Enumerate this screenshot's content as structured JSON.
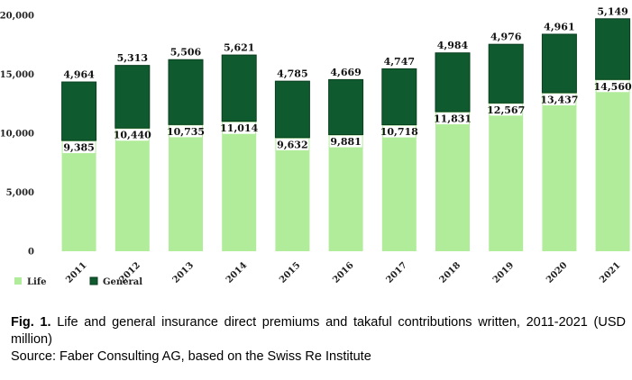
{
  "chart_data": {
    "type": "bar",
    "stacked": true,
    "categories": [
      "2011",
      "2012",
      "2013",
      "2014",
      "2015",
      "2016",
      "2017",
      "2018",
      "2019",
      "2020",
      "2021"
    ],
    "series": [
      {
        "name": "Life",
        "color": "#b1ec9b",
        "values": [
          9385,
          10440,
          10735,
          11014,
          9632,
          9881,
          10718,
          11831,
          12567,
          13437,
          14560
        ],
        "value_labels": [
          "9,385",
          "10,440",
          "10,735",
          "11,014",
          "9,632",
          "9,881",
          "10,718",
          "11,831",
          "12,567",
          "13,437",
          "14,560"
        ]
      },
      {
        "name": "General",
        "color": "#0f5a2e",
        "values": [
          4964,
          5313,
          5506,
          5621,
          4785,
          4669,
          4747,
          4984,
          4976,
          4961,
          5149
        ],
        "value_labels": [
          "4,964",
          "5,313",
          "5,506",
          "5,621",
          "4,785",
          "4,669",
          "4,747",
          "4,984",
          "4,976",
          "4,961",
          "5,149"
        ]
      }
    ],
    "ylim": [
      0,
      20000
    ],
    "yticks": [
      0,
      5000,
      10000,
      15000,
      20000
    ],
    "ytick_labels": [
      "0",
      "5,000",
      "10,000",
      "15,000",
      "20,000"
    ],
    "grid": false,
    "legend_position": "bottom-left",
    "xlabel": "",
    "ylabel": ""
  },
  "caption": {
    "fig_label": "Fig. 1.",
    "text": " Life and general insurance direct premiums and takaful contributions written, 2011-2021 (USD million)",
    "source": "Source: Faber Consulting AG, based on the Swiss Re Institute"
  }
}
